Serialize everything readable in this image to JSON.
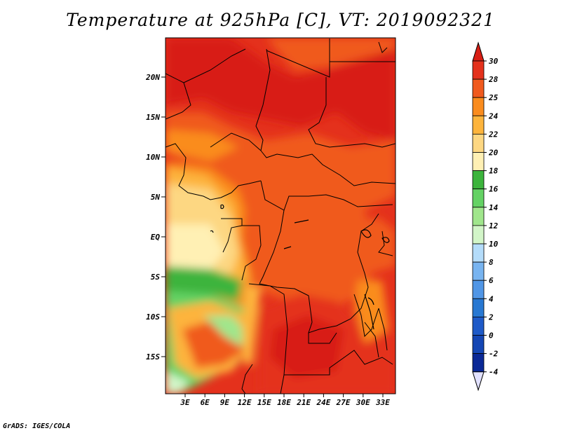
{
  "title": "Temperature at 925hPa [C], VT: 2019092321",
  "footer": "GrADS: IGES/COLA",
  "map": {
    "lat_labels": [
      "20N",
      "15N",
      "10N",
      "5N",
      "EQ",
      "5S",
      "10S",
      "15S"
    ],
    "lon_labels": [
      "3E",
      "6E",
      "9E",
      "12E",
      "15E",
      "18E",
      "21E",
      "24E",
      "27E",
      "30E",
      "33E"
    ]
  },
  "colorbar": {
    "levels": [
      "30",
      "28",
      "25",
      "24",
      "22",
      "20",
      "18",
      "16",
      "14",
      "12",
      "10",
      "8",
      "6",
      "4",
      "2",
      "0",
      "-2",
      "-4"
    ],
    "colors": {
      "above_30": "#d81e14",
      "28_30": "#e4311c",
      "25_28": "#f05a1e",
      "24_25": "#fa8c1e",
      "22_24": "#fdb43c",
      "20_22": "#fdd782",
      "18_20": "#fff0b4",
      "16_18": "#3cb43c",
      "14_16": "#64d264",
      "12_14": "#a0e68c",
      "10_12": "#d2f5c8",
      "8_10": "#b4dcfa",
      "6_8": "#78b4f0",
      "4_6": "#5096e6",
      "2_4": "#2878d2",
      "0_2": "#1e5ac8",
      "-2_0": "#1446b4",
      "-4_-2": "#0a2896",
      "below_-4": "#14146e",
      "low_triangle": "#e1e1ff"
    }
  }
}
